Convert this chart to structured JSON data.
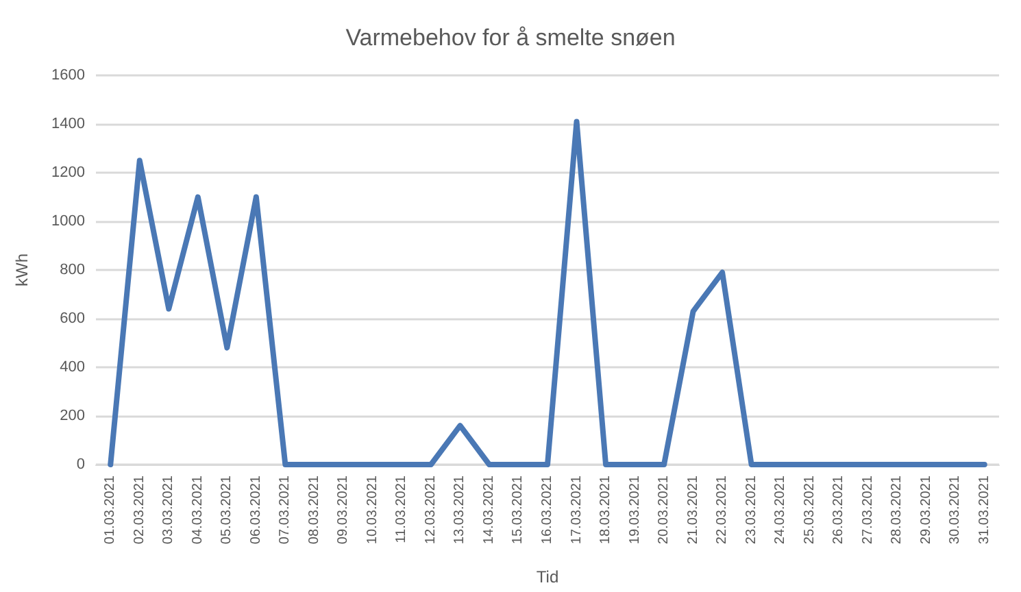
{
  "chart_data": {
    "type": "line",
    "title": "Varmebehov for å smelte snøen",
    "xlabel": "Tid",
    "ylabel": "kWh",
    "categories": [
      "01.03.2021",
      "02.03.2021",
      "03.03.2021",
      "04.03.2021",
      "05.03.2021",
      "06.03.2021",
      "07.03.2021",
      "08.03.2021",
      "09.03.2021",
      "10.03.2021",
      "11.03.2021",
      "12.03.2021",
      "13.03.2021",
      "14.03.2021",
      "15.03.2021",
      "16.03.2021",
      "17.03.2021",
      "18.03.2021",
      "19.03.2021",
      "20.03.2021",
      "21.03.2021",
      "22.03.2021",
      "23.03.2021",
      "24.03.2021",
      "25.03.2021",
      "26.03.2021",
      "27.03.2021",
      "28.03.2021",
      "29.03.2021",
      "30.03.2021",
      "31.03.2021"
    ],
    "series": [
      {
        "color": "#4a78b5",
        "values": [
          0,
          1250,
          640,
          1100,
          480,
          1100,
          0,
          0,
          0,
          0,
          0,
          0,
          160,
          0,
          0,
          0,
          1410,
          0,
          0,
          0,
          630,
          790,
          0,
          0,
          0,
          0,
          0,
          0,
          0,
          0,
          0
        ]
      }
    ],
    "ylim": [
      0,
      1600
    ],
    "yticks": [
      0,
      200,
      400,
      600,
      800,
      1000,
      1200,
      1400,
      1600
    ],
    "grid": "y",
    "marker": "none",
    "line_style": "solid"
  }
}
